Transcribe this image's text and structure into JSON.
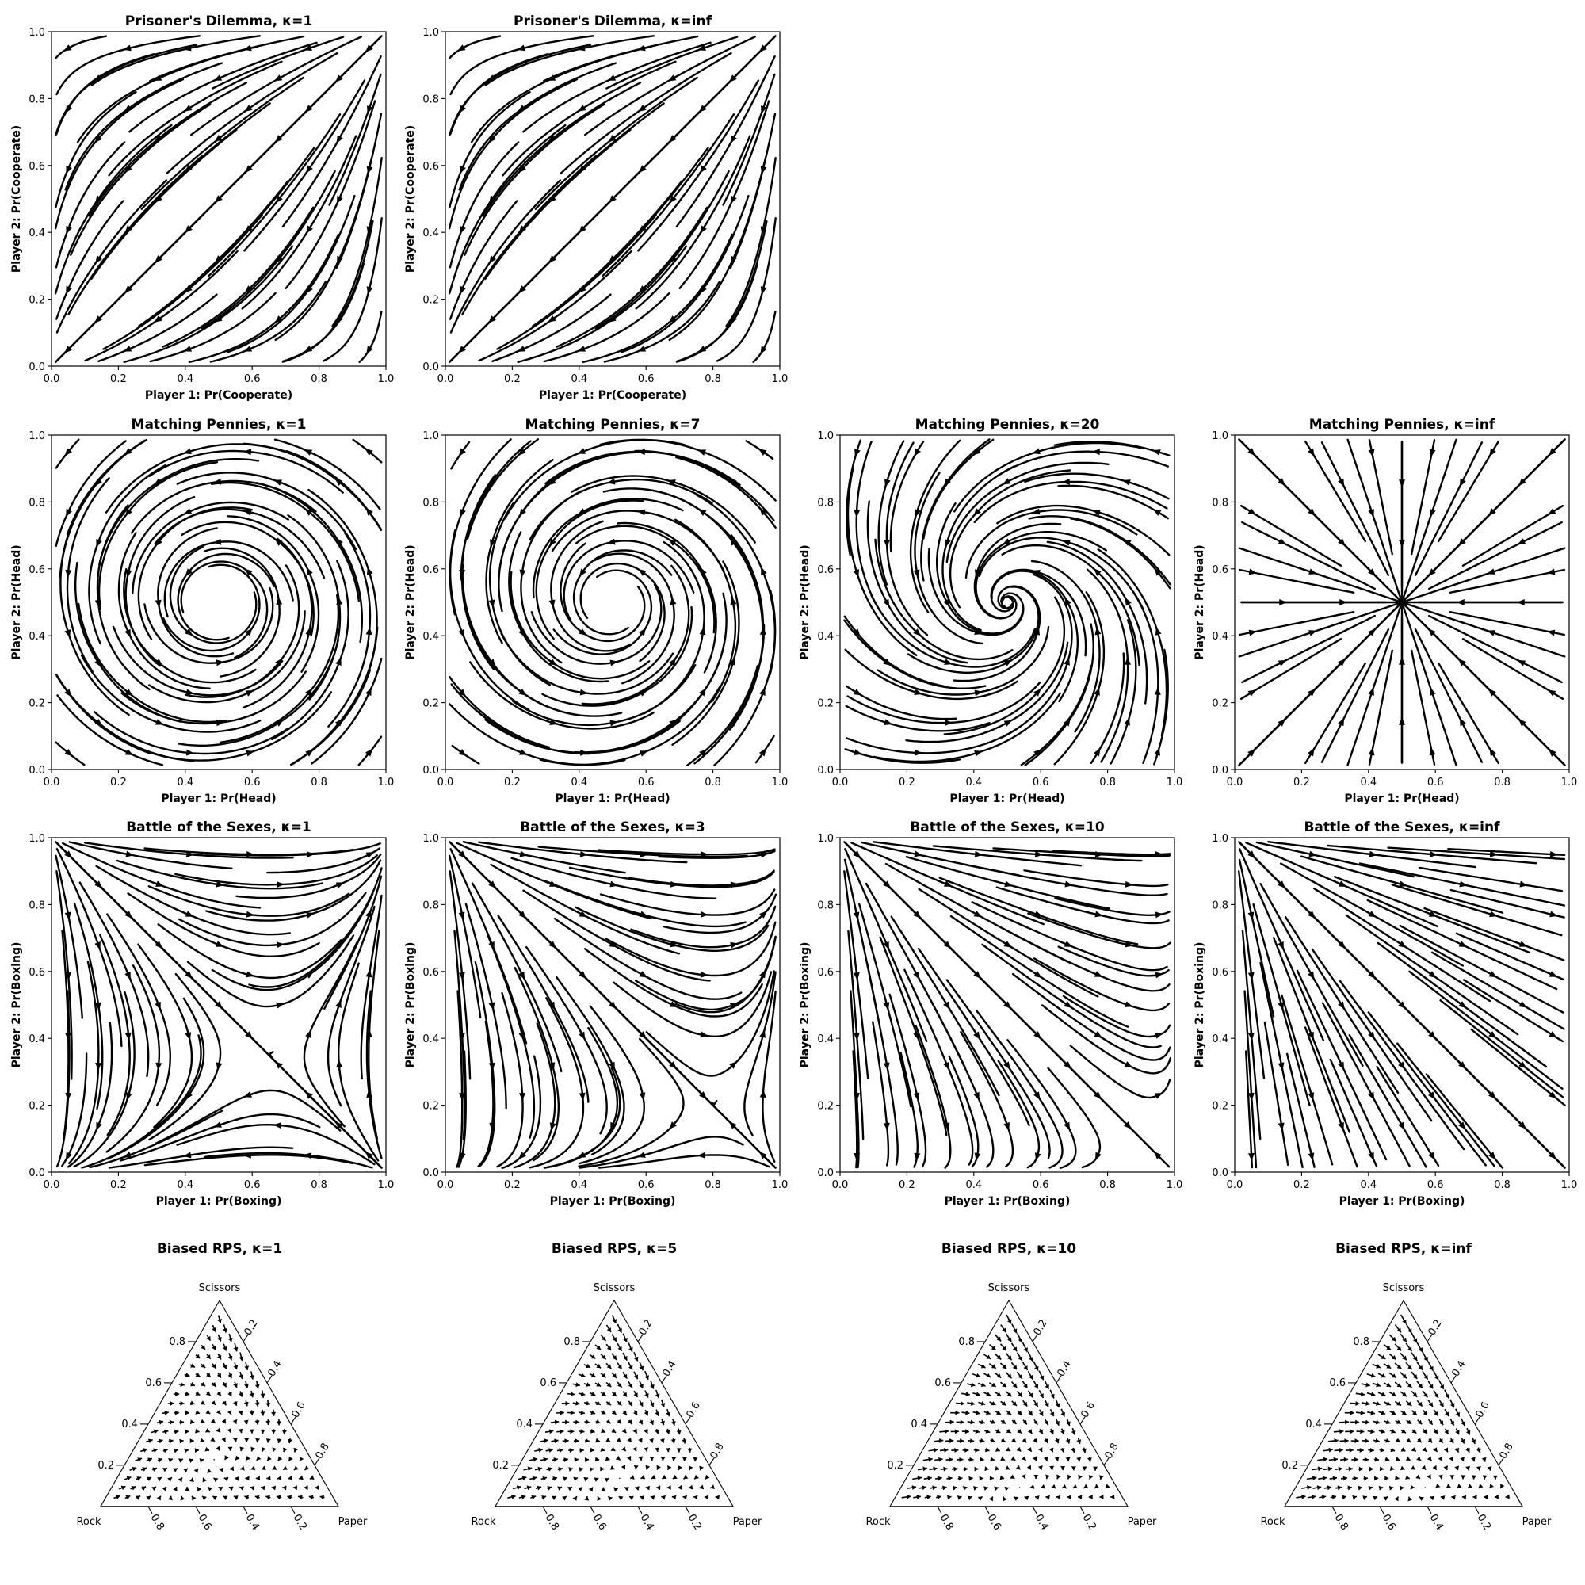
{
  "chart_data": [
    {
      "type": "streamplot",
      "game": "pd",
      "kappa": "1",
      "title": "Prisoner's Dilemma, κ=1",
      "xlabel": "Player 1: Pr(Cooperate)",
      "ylabel": "Player 2: Pr(Cooperate)",
      "xlim": [
        0,
        1
      ],
      "ylim": [
        0,
        1
      ],
      "xticks": [
        "0.0",
        "0.2",
        "0.4",
        "0.6",
        "0.8",
        "1.0"
      ],
      "yticks": [
        "0.0",
        "0.2",
        "0.4",
        "0.6",
        "0.8",
        "1.0"
      ],
      "fixed_point": [
        0,
        0
      ]
    },
    {
      "type": "streamplot",
      "game": "pd",
      "kappa": "inf",
      "title": "Prisoner's Dilemma, κ=inf",
      "xlabel": "Player 1: Pr(Cooperate)",
      "ylabel": "Player 2: Pr(Cooperate)",
      "xlim": [
        0,
        1
      ],
      "ylim": [
        0,
        1
      ],
      "xticks": [
        "0.0",
        "0.2",
        "0.4",
        "0.6",
        "0.8",
        "1.0"
      ],
      "yticks": [
        "0.0",
        "0.2",
        "0.4",
        "0.6",
        "0.8",
        "1.0"
      ],
      "fixed_point": [
        0,
        0
      ]
    },
    {
      "type": "streamplot",
      "game": "mp",
      "kappa": "1",
      "title": "Matching Pennies, κ=1",
      "xlabel": "Player 1: Pr(Head)",
      "ylabel": "Player 2: Pr(Head)",
      "xlim": [
        0,
        1
      ],
      "ylim": [
        0,
        1
      ],
      "xticks": [
        "0.0",
        "0.2",
        "0.4",
        "0.6",
        "0.8",
        "1.0"
      ],
      "yticks": [
        "0.0",
        "0.2",
        "0.4",
        "0.6",
        "0.8",
        "1.0"
      ],
      "fixed_point": [
        0.5,
        0.5
      ]
    },
    {
      "type": "streamplot",
      "game": "mp",
      "kappa": "7",
      "title": "Matching Pennies, κ=7",
      "xlabel": "Player 1: Pr(Head)",
      "ylabel": "Player 2: Pr(Head)",
      "xlim": [
        0,
        1
      ],
      "ylim": [
        0,
        1
      ],
      "xticks": [
        "0.0",
        "0.2",
        "0.4",
        "0.6",
        "0.8",
        "1.0"
      ],
      "yticks": [
        "0.0",
        "0.2",
        "0.4",
        "0.6",
        "0.8",
        "1.0"
      ],
      "fixed_point": [
        0.5,
        0.5
      ]
    },
    {
      "type": "streamplot",
      "game": "mp",
      "kappa": "20",
      "title": "Matching Pennies, κ=20",
      "xlabel": "Player 1: Pr(Head)",
      "ylabel": "Player 2: Pr(Head)",
      "xlim": [
        0,
        1
      ],
      "ylim": [
        0,
        1
      ],
      "xticks": [
        "0.0",
        "0.2",
        "0.4",
        "0.6",
        "0.8",
        "1.0"
      ],
      "yticks": [
        "0.0",
        "0.2",
        "0.4",
        "0.6",
        "0.8",
        "1.0"
      ],
      "fixed_point": [
        0.5,
        0.5
      ]
    },
    {
      "type": "streamplot",
      "game": "mp",
      "kappa": "inf",
      "title": "Matching Pennies, κ=inf",
      "xlabel": "Player 1: Pr(Head)",
      "ylabel": "Player 2: Pr(Head)",
      "xlim": [
        0,
        1
      ],
      "ylim": [
        0,
        1
      ],
      "xticks": [
        "0.0",
        "0.2",
        "0.4",
        "0.6",
        "0.8",
        "1.0"
      ],
      "yticks": [
        "0.0",
        "0.2",
        "0.4",
        "0.6",
        "0.8",
        "1.0"
      ],
      "fixed_point": [
        0.5,
        0.5
      ]
    },
    {
      "type": "streamplot",
      "game": "bos",
      "kappa": "1",
      "title": "Battle of the Sexes, κ=1",
      "xlabel": "Player 1: Pr(Boxing)",
      "ylabel": "Player 2: Pr(Boxing)",
      "xlim": [
        0,
        1
      ],
      "ylim": [
        0,
        1
      ],
      "xticks": [
        "0.0",
        "0.2",
        "0.4",
        "0.6",
        "0.8",
        "1.0"
      ],
      "yticks": [
        "0.0",
        "0.2",
        "0.4",
        "0.6",
        "0.8",
        "1.0"
      ],
      "fixed_point": [
        0.65,
        0.35
      ]
    },
    {
      "type": "streamplot",
      "game": "bos",
      "kappa": "3",
      "title": "Battle of the Sexes, κ=3",
      "xlabel": "Player 1: Pr(Boxing)",
      "ylabel": "Player 2: Pr(Boxing)",
      "xlim": [
        0,
        1
      ],
      "ylim": [
        0,
        1
      ],
      "xticks": [
        "0.0",
        "0.2",
        "0.4",
        "0.6",
        "0.8",
        "1.0"
      ],
      "yticks": [
        "0.0",
        "0.2",
        "0.4",
        "0.6",
        "0.8",
        "1.0"
      ],
      "fixed_point": [
        0.8,
        0.2
      ]
    },
    {
      "type": "streamplot",
      "game": "bos",
      "kappa": "10",
      "title": "Battle of the Sexes, κ=10",
      "xlabel": "Player 1: Pr(Boxing)",
      "ylabel": "Player 2: Pr(Boxing)",
      "xlim": [
        0,
        1
      ],
      "ylim": [
        0,
        1
      ],
      "xticks": [
        "0.0",
        "0.2",
        "0.4",
        "0.6",
        "0.8",
        "1.0"
      ],
      "yticks": [
        "0.0",
        "0.2",
        "0.4",
        "0.6",
        "0.8",
        "1.0"
      ],
      "fixed_point": [
        0.93,
        0.07
      ]
    },
    {
      "type": "streamplot",
      "game": "bos",
      "kappa": "inf",
      "title": "Battle of the Sexes, κ=inf",
      "xlabel": "Player 1: Pr(Boxing)",
      "ylabel": "Player 2: Pr(Boxing)",
      "xlim": [
        0,
        1
      ],
      "ylim": [
        0,
        1
      ],
      "xticks": [
        "0.0",
        "0.2",
        "0.4",
        "0.6",
        "0.8",
        "1.0"
      ],
      "yticks": [
        "0.0",
        "0.2",
        "0.4",
        "0.6",
        "0.8",
        "1.0"
      ],
      "fixed_point": [
        1,
        0
      ]
    },
    {
      "type": "ternary-quiver",
      "game": "rps",
      "kappa": "1",
      "title": "Biased RPS, κ=1",
      "vertices": {
        "top": "Scissors",
        "left": "Rock",
        "right": "Paper"
      },
      "left_ticks": [
        "0.2",
        "0.4",
        "0.6",
        "0.8"
      ],
      "right_ticks": [
        "0.2",
        "0.4",
        "0.6",
        "0.8"
      ],
      "bottom_ticks": [
        "0.8",
        "0.6",
        "0.4",
        "0.2"
      ],
      "fixed_point": [
        0.3,
        0.5,
        0.2
      ]
    },
    {
      "type": "ternary-quiver",
      "game": "rps",
      "kappa": "5",
      "title": "Biased RPS, κ=5",
      "vertices": {
        "top": "Scissors",
        "left": "Rock",
        "right": "Paper"
      },
      "left_ticks": [
        "0.2",
        "0.4",
        "0.6",
        "0.8"
      ],
      "right_ticks": [
        "0.2",
        "0.4",
        "0.6",
        "0.8"
      ],
      "bottom_ticks": [
        "0.8",
        "0.6",
        "0.4",
        "0.2"
      ],
      "fixed_point": [
        0.2,
        0.65,
        0.15
      ]
    },
    {
      "type": "ternary-quiver",
      "game": "rps",
      "kappa": "10",
      "title": "Biased RPS, κ=10",
      "vertices": {
        "top": "Scissors",
        "left": "Rock",
        "right": "Paper"
      },
      "left_ticks": [
        "0.2",
        "0.4",
        "0.6",
        "0.8"
      ],
      "right_ticks": [
        "0.2",
        "0.4",
        "0.6",
        "0.8"
      ],
      "bottom_ticks": [
        "0.8",
        "0.6",
        "0.4",
        "0.2"
      ],
      "fixed_point": [
        0.15,
        0.75,
        0.1
      ]
    },
    {
      "type": "ternary-quiver",
      "game": "rps",
      "kappa": "inf",
      "title": "Biased RPS, κ=inf",
      "vertices": {
        "top": "Scissors",
        "left": "Rock",
        "right": "Paper"
      },
      "left_ticks": [
        "0.2",
        "0.4",
        "0.6",
        "0.8"
      ],
      "right_ticks": [
        "0.2",
        "0.4",
        "0.6",
        "0.8"
      ],
      "bottom_ticks": [
        "0.8",
        "0.6",
        "0.4",
        "0.2"
      ],
      "fixed_point": [
        0.1,
        0.8,
        0.1
      ]
    }
  ]
}
